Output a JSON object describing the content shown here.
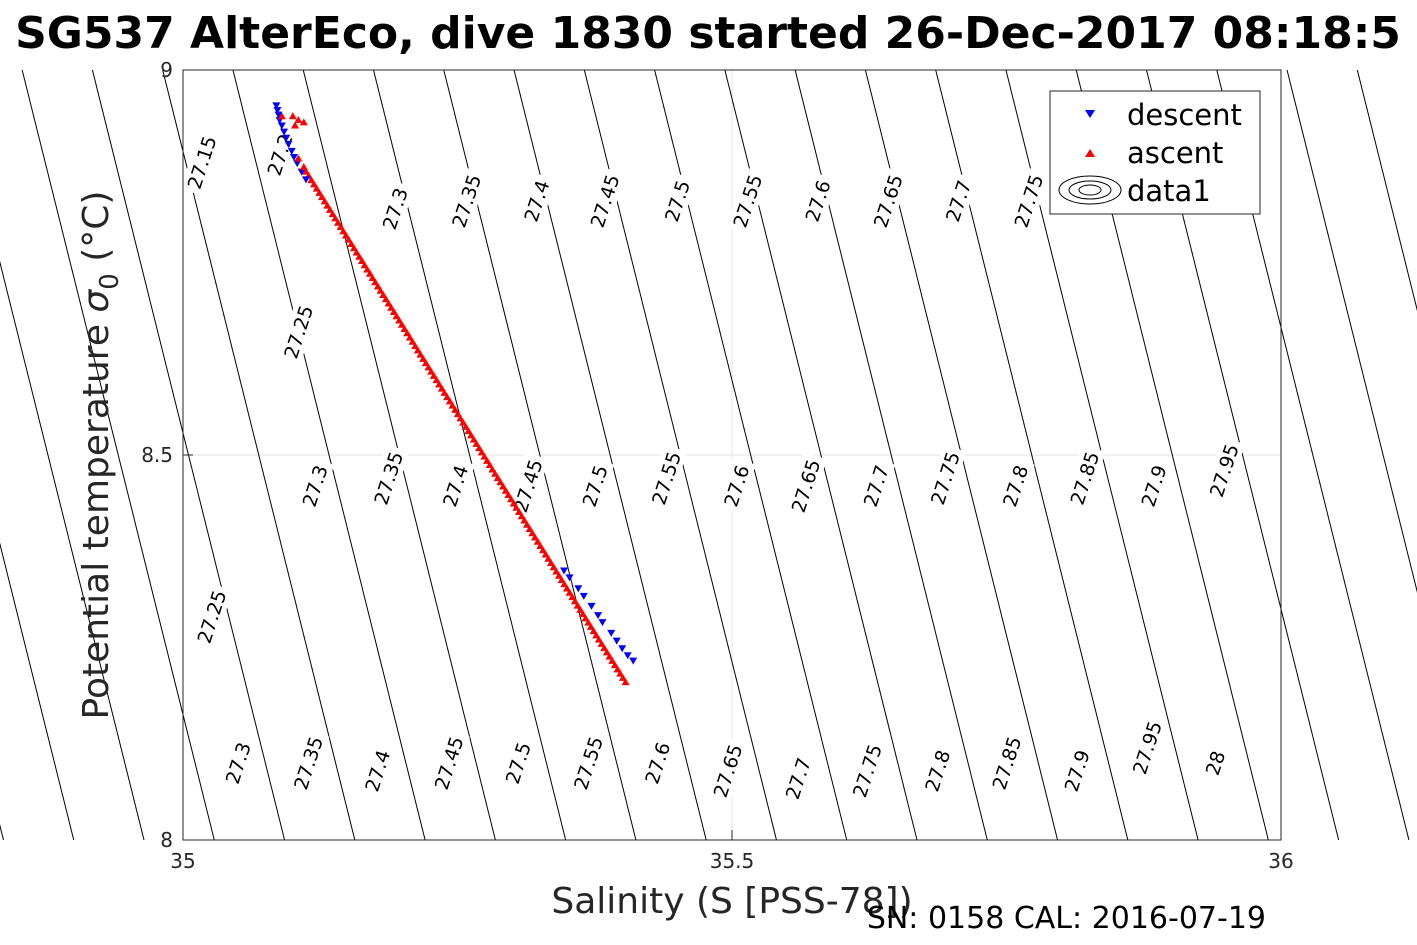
{
  "chart_data": {
    "type": "scatter",
    "title": "SG537 AlterEco, dive 1830 started 26-Dec-2017 08:18:5",
    "xlabel": "Salinity (S [PSS-78])",
    "ylabel_main": "Potential temperature ",
    "ylabel_sigma": "σ",
    "ylabel_sub": "0",
    "ylabel_unit": " (°C)",
    "footer": "SN: 0158  CAL: 2016-07-19",
    "xlim": [
      35,
      36
    ],
    "ylim": [
      8,
      9
    ],
    "xticks": [
      35,
      35.5,
      36
    ],
    "xtick_labels": [
      "35",
      "35.5",
      "36"
    ],
    "yticks": [
      8,
      8.5,
      9
    ],
    "ytick_labels": [
      "8",
      "8.5",
      "9"
    ],
    "grid": true,
    "legend_position": "top-right",
    "legend": [
      {
        "name": "descent",
        "color": "#0000ff",
        "marker": "triangle-down"
      },
      {
        "name": "ascent",
        "color": "#ff0000",
        "marker": "triangle-up"
      },
      {
        "name": "data1",
        "color": "#000000",
        "marker": "contour"
      }
    ],
    "isopycnals": {
      "levels": [
        "27.15",
        "27.2",
        "27.25",
        "27.3",
        "27.35",
        "27.4",
        "27.45",
        "27.5",
        "27.55",
        "27.6",
        "27.65",
        "27.7",
        "27.75",
        "27.8",
        "27.85",
        "27.9",
        "27.95",
        "28"
      ],
      "labels": [
        {
          "text": "27.15",
          "s": 35.017,
          "t": 8.88
        },
        {
          "text": "27.2",
          "s": 35.088,
          "t": 8.89
        },
        {
          "text": "27.25",
          "s": 35.105,
          "t": 8.66
        },
        {
          "text": "27.3",
          "s": 35.193,
          "t": 8.82
        },
        {
          "text": "27.35",
          "s": 35.258,
          "t": 8.83
        },
        {
          "text": "27.4",
          "s": 35.322,
          "t": 8.83
        },
        {
          "text": "27.45",
          "s": 35.384,
          "t": 8.83
        },
        {
          "text": "27.5",
          "s": 35.45,
          "t": 8.83
        },
        {
          "text": "27.55",
          "s": 35.514,
          "t": 8.83
        },
        {
          "text": "27.6",
          "s": 35.578,
          "t": 8.83
        },
        {
          "text": "27.65",
          "s": 35.642,
          "t": 8.83
        },
        {
          "text": "27.7",
          "s": 35.706,
          "t": 8.83
        },
        {
          "text": "27.75",
          "s": 35.77,
          "t": 8.83
        },
        {
          "text": "27.25",
          "s": 35.026,
          "t": 8.29
        },
        {
          "text": "27.3",
          "s": 35.12,
          "t": 8.46
        },
        {
          "text": "27.35",
          "s": 35.187,
          "t": 8.47
        },
        {
          "text": "27.4",
          "s": 35.248,
          "t": 8.46
        },
        {
          "text": "27.45",
          "s": 35.314,
          "t": 8.46
        },
        {
          "text": "27.5",
          "s": 35.375,
          "t": 8.46
        },
        {
          "text": "27.55",
          "s": 35.44,
          "t": 8.47
        },
        {
          "text": "27.6",
          "s": 35.504,
          "t": 8.46
        },
        {
          "text": "27.65",
          "s": 35.567,
          "t": 8.46
        },
        {
          "text": "27.7",
          "s": 35.631,
          "t": 8.46
        },
        {
          "text": "27.75",
          "s": 35.694,
          "t": 8.47
        },
        {
          "text": "27.8",
          "s": 35.758,
          "t": 8.46
        },
        {
          "text": "27.85",
          "s": 35.821,
          "t": 8.47
        },
        {
          "text": "27.9",
          "s": 35.884,
          "t": 8.46
        },
        {
          "text": "27.95",
          "s": 35.948,
          "t": 8.48
        },
        {
          "text": "27.3",
          "s": 35.05,
          "t": 8.1
        },
        {
          "text": "27.35",
          "s": 35.114,
          "t": 8.1
        },
        {
          "text": "27.4",
          "s": 35.177,
          "t": 8.09
        },
        {
          "text": "27.45",
          "s": 35.242,
          "t": 8.1
        },
        {
          "text": "27.5",
          "s": 35.305,
          "t": 8.1
        },
        {
          "text": "27.55",
          "s": 35.369,
          "t": 8.1
        },
        {
          "text": "27.6",
          "s": 35.432,
          "t": 8.1
        },
        {
          "text": "27.65",
          "s": 35.496,
          "t": 8.09
        },
        {
          "text": "27.7",
          "s": 35.56,
          "t": 8.08
        },
        {
          "text": "27.75",
          "s": 35.623,
          "t": 8.09
        },
        {
          "text": "27.8",
          "s": 35.687,
          "t": 8.09
        },
        {
          "text": "27.85",
          "s": 35.75,
          "t": 8.1
        },
        {
          "text": "27.9",
          "s": 35.814,
          "t": 8.09
        },
        {
          "text": "27.95",
          "s": 35.878,
          "t": 8.12
        },
        {
          "text": "28",
          "s": 35.94,
          "t": 8.1
        }
      ]
    },
    "series": [
      {
        "name": "descent",
        "color": "#0000ff",
        "marker": "triangle-down",
        "points": [
          [
            35.085,
            8.954
          ],
          [
            35.086,
            8.948
          ],
          [
            35.087,
            8.942
          ],
          [
            35.088,
            8.935
          ],
          [
            35.09,
            8.928
          ],
          [
            35.092,
            8.92
          ],
          [
            35.094,
            8.912
          ],
          [
            35.096,
            8.904
          ],
          [
            35.099,
            8.895
          ],
          [
            35.101,
            8.887
          ],
          [
            35.104,
            8.879
          ],
          [
            35.108,
            8.868
          ],
          [
            35.112,
            8.858
          ],
          [
            35.347,
            8.35
          ],
          [
            35.352,
            8.341
          ],
          [
            35.36,
            8.327
          ],
          [
            35.365,
            8.317
          ],
          [
            35.372,
            8.304
          ],
          [
            35.378,
            8.292
          ],
          [
            35.382,
            8.283
          ],
          [
            35.39,
            8.269
          ],
          [
            35.395,
            8.259
          ],
          [
            35.4,
            8.249
          ],
          [
            35.405,
            8.24
          ],
          [
            35.41,
            8.233
          ]
        ]
      },
      {
        "name": "ascent",
        "color": "#ff0000",
        "marker": "triangle-up",
        "points": [
          [
            35.09,
            8.94
          ],
          [
            35.1,
            8.94
          ],
          [
            35.105,
            8.935
          ],
          [
            35.11,
            8.932
          ],
          [
            35.102,
            8.928
          ],
          [
            35.105,
            8.885
          ],
          [
            35.11,
            8.874
          ]
        ]
      }
    ]
  }
}
